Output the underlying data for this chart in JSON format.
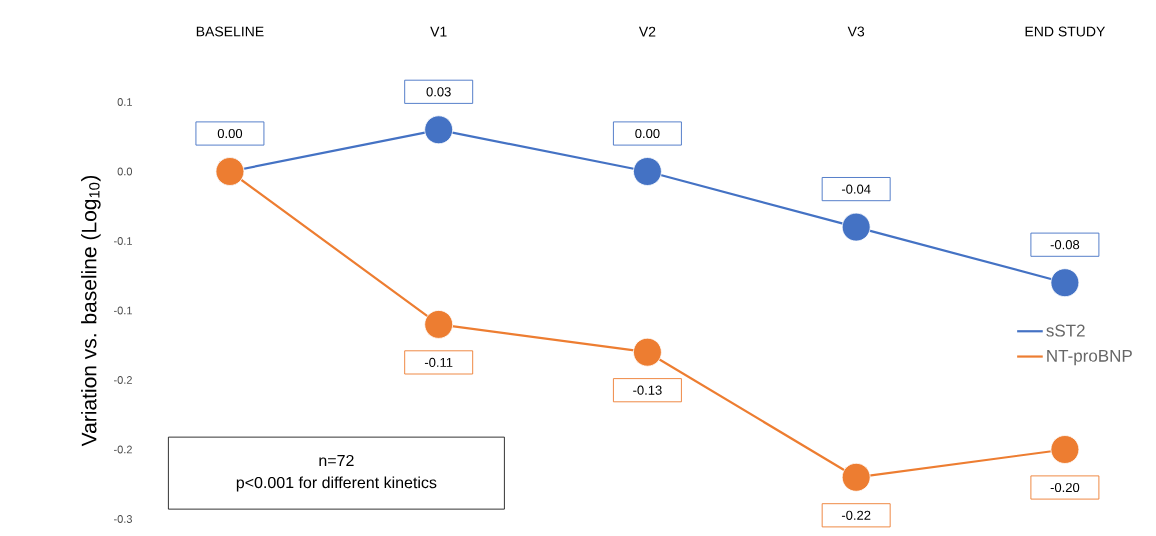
{
  "chart_data": {
    "type": "line",
    "categories": [
      "BASELINE",
      "V1",
      "V2",
      "V3",
      "END STUDY"
    ],
    "ylabel": "Variation vs. baseline (Log$_{10}$)",
    "ylim": [
      -0.25,
      0.05
    ],
    "yticks": [
      {
        "value": 0.05,
        "label": "0.1"
      },
      {
        "value": 0,
        "label": "0.0"
      },
      {
        "value": -0.05,
        "label": "-0.1"
      },
      {
        "value": -0.1,
        "label": "-0.1"
      },
      {
        "value": -0.15,
        "label": "-0.2"
      },
      {
        "value": -0.2,
        "label": "-0.2"
      },
      {
        "value": -0.25,
        "label": "-0.3"
      }
    ],
    "series": [
      {
        "name": "sST2",
        "color": "#4472c4",
        "values": [
          0.0,
          0.03,
          0.0,
          -0.04,
          -0.08
        ],
        "value_labels": [
          "0.00",
          "0.03",
          "0.00",
          "-0.04",
          "-0.08"
        ]
      },
      {
        "name": "NT-proBNP",
        "color": "#ed7d31",
        "values": [
          0.0,
          -0.11,
          -0.13,
          -0.22,
          -0.2
        ],
        "value_labels": [
          null,
          "-0.11",
          "-0.13",
          "-0.22",
          "-0.20"
        ]
      }
    ],
    "marker": "circle",
    "line_style": "solid",
    "legend": "right",
    "grid": false,
    "annotations": [
      "n=72",
      "p<0.001 for different kinetics"
    ]
  }
}
